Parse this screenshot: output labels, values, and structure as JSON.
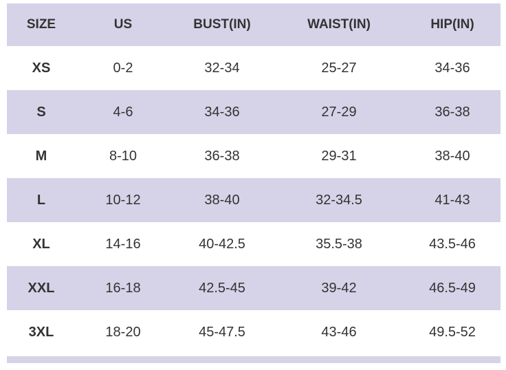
{
  "headers": [
    "SIZE",
    "US",
    "BUST(IN)",
    "WAIST(IN)",
    "HIP(IN)"
  ],
  "rows": [
    [
      "XS",
      "0-2",
      "32-34",
      "25-27",
      "34-36"
    ],
    [
      "S",
      "4-6",
      "34-36",
      "27-29",
      "36-38"
    ],
    [
      "M",
      "8-10",
      "36-38",
      "29-31",
      "38-40"
    ],
    [
      "L",
      "10-12",
      "38-40",
      "32-34.5",
      "41-43"
    ],
    [
      "XL",
      "14-16",
      "40-42.5",
      "35.5-38",
      "43.5-46"
    ],
    [
      "XXL",
      "16-18",
      "42.5-45",
      "39-42",
      "46.5-49"
    ],
    [
      "3XL",
      "18-20",
      "45-47.5",
      "43-46",
      "49.5-52"
    ]
  ],
  "colors": {
    "shade": "#d6d3e8",
    "text": "#333333"
  }
}
